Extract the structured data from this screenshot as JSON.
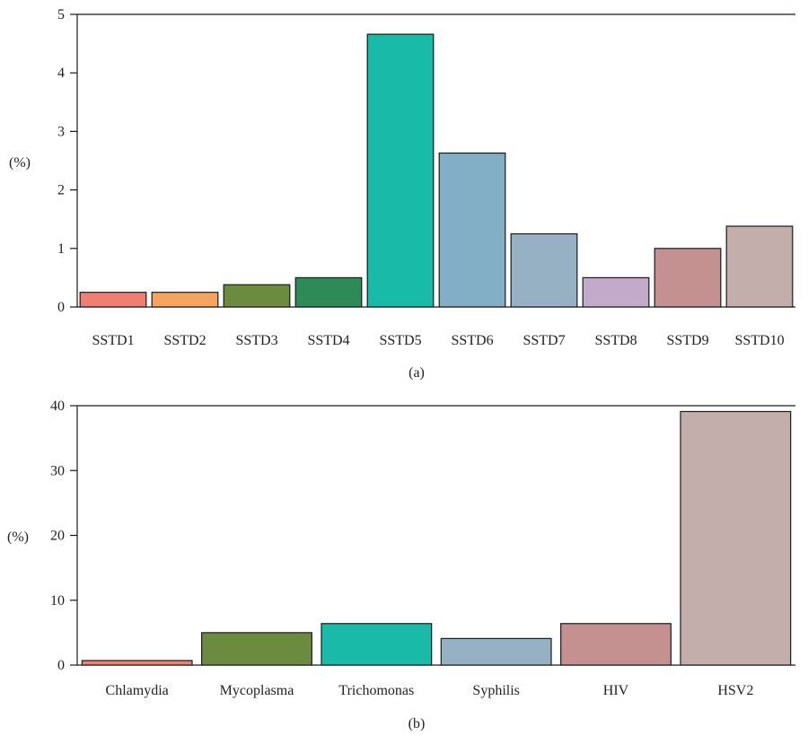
{
  "chart_data": [
    {
      "type": "bar",
      "caption": "(a)",
      "ylabel": "(%)",
      "xlabel": "",
      "ylim": [
        0,
        5
      ],
      "yticks": [
        0,
        1,
        2,
        3,
        4,
        5
      ],
      "grid": false,
      "categories": [
        "SSTD1",
        "SSTD2",
        "SSTD3",
        "SSTD4",
        "SSTD5",
        "SSTD6",
        "SSTD7",
        "SSTD8",
        "SSTD9",
        "SSTD10"
      ],
      "values": [
        0.25,
        0.25,
        0.38,
        0.5,
        4.66,
        2.63,
        1.25,
        0.5,
        1.0,
        1.38
      ],
      "colors": [
        "#f07f73",
        "#f5a460",
        "#6b8b3e",
        "#2e8b57",
        "#1abaa8",
        "#82aec6",
        "#96b0c4",
        "#c3aacb",
        "#c49090",
        "#c3aeac"
      ]
    },
    {
      "type": "bar",
      "caption": "(b)",
      "ylabel": "(%)",
      "xlabel": "",
      "ylim": [
        0,
        40
      ],
      "yticks": [
        0,
        10,
        20,
        30,
        40
      ],
      "grid": false,
      "categories": [
        "Chlamydia",
        "Mycoplasma",
        "Trichomonas",
        "Syphilis",
        "HIV",
        "HSV2"
      ],
      "values": [
        0.7,
        5.0,
        6.4,
        4.1,
        6.4,
        39.1
      ],
      "colors": [
        "#f07f73",
        "#6b8b3e",
        "#1abaa8",
        "#96b0c4",
        "#c49090",
        "#c3aeac"
      ]
    }
  ]
}
